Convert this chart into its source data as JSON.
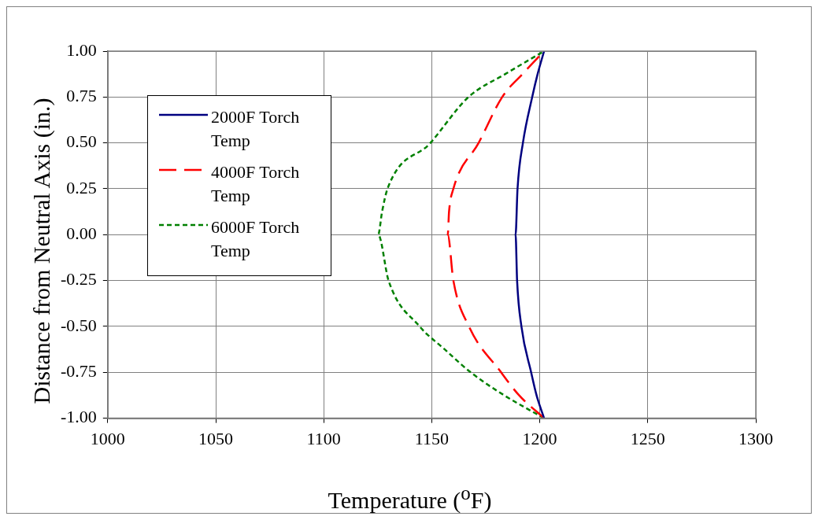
{
  "chart_data": {
    "type": "line",
    "xlabel": "Temperature ($^{o}$F)",
    "ylabel": "Distance from Neutral Axis (in.)",
    "xlim": [
      1000,
      1300
    ],
    "xticks": [
      1000,
      1050,
      1100,
      1150,
      1200,
      1250,
      1300
    ],
    "ylim": [
      -1,
      1
    ],
    "yticks": [
      {
        "value": -1,
        "label": "-1.00"
      },
      {
        "value": -0.75,
        "label": "-0.75"
      },
      {
        "value": -0.5,
        "label": "-0.50"
      },
      {
        "value": -0.25,
        "label": "-0.25"
      },
      {
        "value": 0,
        "label": "0.00"
      },
      {
        "value": 0.25,
        "label": "0.25"
      },
      {
        "value": 0.5,
        "label": "0.50"
      },
      {
        "value": 0.75,
        "label": "0.75"
      },
      {
        "value": 1,
        "label": "1.00"
      }
    ],
    "grid": true,
    "legend": "top left",
    "marker": "none",
    "series": [
      {
        "name": "2000F Torch Temp",
        "color": "#000080",
        "line_style": "solid",
        "x": [
          1202,
          1198.5,
          1196,
          1191.5,
          1189.5,
          1188.8,
          1189.7,
          1192.2,
          1196.5,
          1199,
          1202
        ],
        "values": [
          -1,
          -0.875,
          -0.75,
          -0.5,
          -0.25,
          0,
          0.25,
          0.5,
          0.75,
          0.875,
          1
        ]
      },
      {
        "name": "4000F Torch Temp",
        "color": "#ff0000",
        "line_style": "dashed",
        "x": [
          1202,
          1190.4,
          1182.1,
          1167.2,
          1160,
          1157.4,
          1158,
          1160,
          1171.7,
          1182.6,
          1192,
          1202
        ],
        "values": [
          -1,
          -0.875,
          -0.75,
          -0.5,
          -0.25,
          0,
          0.125,
          0.25,
          0.5,
          0.75,
          0.875,
          1
        ]
      },
      {
        "name": "6000F Torch Temp",
        "color": "#008000",
        "line_style": "dotted",
        "x": [
          1202,
          1183.5,
          1168,
          1156,
          1144.4,
          1130,
          1125.2,
          1127,
          1129.5,
          1149.4,
          1167,
          1184,
          1202
        ],
        "values": [
          -1,
          -0.875,
          -0.75,
          -0.625,
          -0.5,
          -0.25,
          0,
          0.125,
          0.25,
          0.5,
          0.75,
          0.875,
          1
        ]
      }
    ]
  }
}
